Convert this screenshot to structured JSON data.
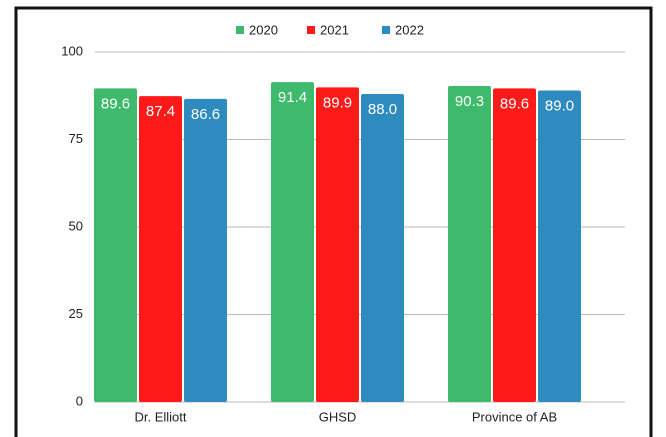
{
  "chart_data": {
    "type": "bar",
    "categories": [
      "Dr. Elliott",
      "GHSD",
      "Province of AB"
    ],
    "series": [
      {
        "name": "2020",
        "color": "#3dba6b",
        "values": [
          89.6,
          91.4,
          90.3
        ]
      },
      {
        "name": "2021",
        "color": "#ff1a1a",
        "values": [
          87.4,
          89.9,
          89.6
        ]
      },
      {
        "name": "2022",
        "color": "#2e8bbf",
        "values": [
          86.6,
          88.0,
          89.0
        ],
        "value_labels": [
          "86.6",
          "88.0",
          "89.0"
        ]
      }
    ],
    "ylim": [
      0,
      100
    ],
    "yticks": [
      0,
      25,
      50,
      75,
      100
    ],
    "grid": true,
    "legend": "top"
  }
}
